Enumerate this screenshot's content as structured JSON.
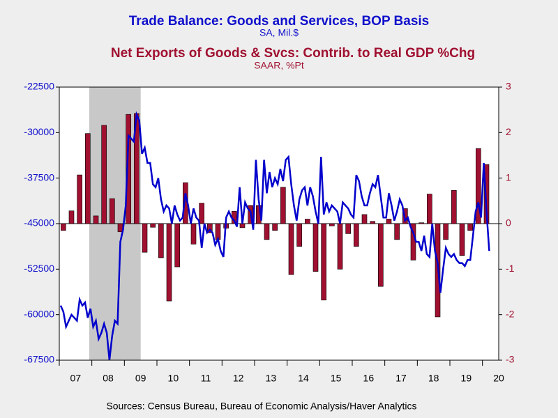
{
  "chart_data": {
    "type": "bar-line",
    "title": "Trade Balance: Goods and Services, BOP Basis",
    "subtitle": "SA, Mil.$",
    "title2": "Net Exports of Goods & Svcs: Contrib. to Real GDP %Chg",
    "subtitle2": "SAAR, %Pt",
    "source": "Sources:  Census Bureau, Bureau of Economic Analysis/Haver Analytics",
    "xlim": [
      2007,
      2020.5
    ],
    "xticks": [
      {
        "value": 2007,
        "label": "07"
      },
      {
        "value": 2008,
        "label": "08"
      },
      {
        "value": 2009,
        "label": "09"
      },
      {
        "value": 2010,
        "label": "10"
      },
      {
        "value": 2011,
        "label": "11"
      },
      {
        "value": 2012,
        "label": "12"
      },
      {
        "value": 2013,
        "label": "13"
      },
      {
        "value": 2014,
        "label": "14"
      },
      {
        "value": 2015,
        "label": "15"
      },
      {
        "value": 2016,
        "label": "16"
      },
      {
        "value": 2017,
        "label": "17"
      },
      {
        "value": 2018,
        "label": "18"
      },
      {
        "value": 2019,
        "label": "19"
      },
      {
        "value": 2020,
        "label": "20"
      }
    ],
    "ylim": [
      -67500,
      -22500
    ],
    "yticks": [
      -67500,
      -60000,
      -52500,
      -45000,
      -37500,
      -30000,
      -22500
    ],
    "y2lim": [
      -3,
      3
    ],
    "y2ticks": [
      -3,
      -2,
      -1,
      0,
      1,
      2,
      3
    ],
    "shaded_ranges": [
      [
        2007.92,
        2009.5
      ]
    ],
    "series": [
      {
        "name": "Trade Balance: Goods and Services, BOP Basis",
        "type": "line",
        "frequency": 12,
        "color": "#0000cc",
        "axis": "y",
        "values": [
          -58500,
          -59500,
          -62000,
          -61000,
          -60000,
          -60500,
          -61000,
          -57500,
          -58500,
          -58000,
          -60500,
          -59000,
          -62000,
          -61000,
          -64000,
          -63000,
          -61500,
          -63000,
          -67500,
          -63500,
          -61000,
          -61500,
          -48000,
          -46000,
          -42000,
          -30500,
          -31000,
          -31500,
          -27000,
          -28000,
          -33500,
          -32500,
          -35000,
          -35000,
          -38500,
          -39000,
          -37500,
          -41000,
          -43000,
          -42000,
          -42500,
          -45000,
          -42000,
          -43500,
          -44500,
          -44000,
          -40000,
          -42000,
          -45000,
          -42500,
          -44000,
          -44500,
          -49000,
          -45000,
          -46500,
          -46000,
          -46500,
          -48500,
          -47500,
          -49500,
          -50500,
          -44000,
          -43000,
          -44000,
          -44500,
          -45500,
          -39000,
          -45000,
          -41500,
          -42500,
          -43000,
          -46000,
          -34500,
          -41000,
          -44500,
          -34500,
          -40000,
          -36500,
          -39000,
          -37500,
          -38500,
          -36000,
          -38000,
          -34500,
          -34000,
          -38500,
          -42000,
          -44500,
          -41000,
          -39500,
          -39000,
          -42000,
          -39000,
          -40500,
          -43000,
          -45000,
          -34000,
          -43500,
          -41500,
          -43000,
          -42000,
          -42500,
          -43000,
          -45000,
          -41500,
          -42000,
          -42500,
          -43500,
          -44000,
          -37000,
          -38000,
          -40500,
          -42000,
          -42000,
          -40000,
          -38500,
          -39000,
          -37000,
          -40500,
          -44000,
          -44000,
          -40000,
          -42000,
          -44500,
          -43000,
          -41000,
          -42000,
          -44500,
          -44000,
          -45500,
          -46500,
          -48000,
          -48000,
          -49500,
          -47000,
          -50000,
          -50500,
          -45000,
          -49500,
          -51500,
          -56400,
          -52500,
          -49000,
          -50000,
          -50500,
          -50000,
          -51000,
          -51500,
          -51500,
          -52000,
          -51000,
          -51000,
          -47000,
          -43000,
          -41500,
          -44000,
          -35000,
          -43000,
          -49500
        ]
      },
      {
        "name": "Net Exports of Goods & Svcs: Contrib. to Real GDP %Chg",
        "type": "bar",
        "frequency": 4,
        "color": "#a01030",
        "axis": "y2",
        "values": [
          -0.15,
          0.28,
          1.07,
          1.98,
          0.17,
          2.16,
          0.55,
          -0.18,
          2.4,
          2.42,
          -0.63,
          -0.08,
          -0.75,
          -1.7,
          -0.95,
          0.9,
          -0.45,
          0.45,
          -0.2,
          -0.35,
          -0.1,
          0.27,
          -0.09,
          0.4,
          0.4,
          -0.35,
          -0.15,
          0.8,
          -1.12,
          -0.5,
          0.1,
          -1.05,
          -1.68,
          -0.05,
          -1.0,
          -0.22,
          -0.5,
          0.2,
          0.05,
          -1.38,
          0.1,
          -0.35,
          0.33,
          -0.8,
          0.02,
          0.65,
          -2.05,
          -0.35,
          0.73,
          -0.7,
          -0.15,
          1.65,
          1.3
        ]
      }
    ]
  }
}
